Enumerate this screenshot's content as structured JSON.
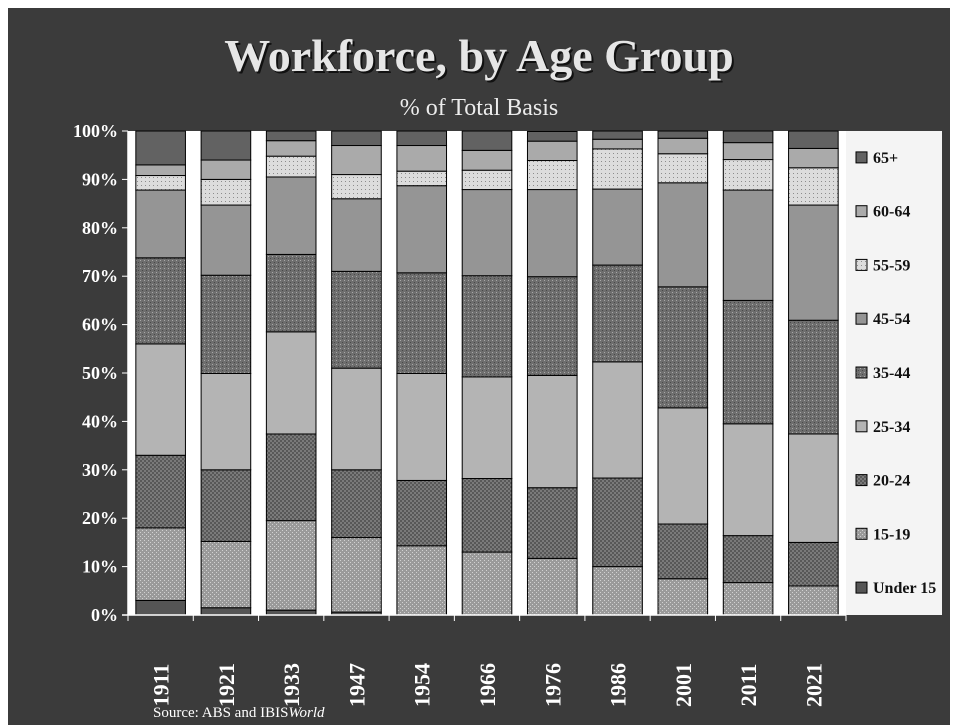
{
  "chart_data": {
    "type": "bar",
    "stacked": true,
    "title": "Workforce, by Age Group",
    "subtitle": "% of Total Basis",
    "source_prefix": "Source: ABS and IBIS",
    "source_italic": "World",
    "categories": [
      "1911",
      "1921",
      "1933",
      "1947",
      "1954",
      "1966",
      "1976",
      "1986",
      "2001",
      "2011",
      "2021"
    ],
    "ylim": [
      0,
      100
    ],
    "yticks": [
      "0%",
      "10%",
      "20%",
      "30%",
      "40%",
      "50%",
      "60%",
      "70%",
      "80%",
      "90%",
      "100%"
    ],
    "legend_placement": "right",
    "series": [
      {
        "name": "Under 15",
        "color": "#555555",
        "pattern": "solid",
        "values": [
          3,
          1.5,
          1,
          0.6,
          0,
          0,
          0,
          0,
          0,
          0,
          0
        ]
      },
      {
        "name": "15-19",
        "color": "#9a9a9a",
        "pattern": "dots",
        "values": [
          15,
          13.7,
          18.5,
          15.4,
          14.3,
          13,
          11.7,
          10,
          7.5,
          6.7,
          6
        ]
      },
      {
        "name": "20-24",
        "color": "#7a7a7a",
        "pattern": "checker",
        "values": [
          15,
          14.8,
          17.9,
          14,
          13.5,
          15.2,
          14.6,
          18.3,
          11.3,
          9.7,
          9
        ]
      },
      {
        "name": "25-34",
        "color": "#b4b4b4",
        "pattern": "solid",
        "values": [
          23,
          19.9,
          21.1,
          21,
          22.1,
          21,
          23.2,
          24,
          24,
          23.1,
          22.4
        ]
      },
      {
        "name": "35-44",
        "color": "#6e6e6e",
        "pattern": "grid",
        "values": [
          17.8,
          20.3,
          16,
          20,
          20.8,
          20.9,
          20.4,
          20,
          25,
          25.5,
          23.5
        ]
      },
      {
        "name": "45-54",
        "color": "#959595",
        "pattern": "solid",
        "values": [
          14,
          14.5,
          16,
          15,
          18,
          17.8,
          18,
          15.7,
          21.5,
          22.8,
          23.8
        ]
      },
      {
        "name": "55-59",
        "color": "#dcdcdc",
        "pattern": "sparse",
        "values": [
          3,
          5.3,
          4.3,
          5,
          3,
          4,
          6,
          8.3,
          6,
          6.3,
          7.7
        ]
      },
      {
        "name": "60-64",
        "color": "#aaaaaa",
        "pattern": "solid",
        "values": [
          2.2,
          4,
          3.2,
          6,
          5.3,
          4.1,
          4,
          2,
          3.2,
          3.5,
          4
        ]
      },
      {
        "name": "65+",
        "color": "#626262",
        "pattern": "solid",
        "values": [
          7,
          6,
          2,
          3,
          3,
          4,
          2,
          1.7,
          1.5,
          2.4,
          3.6
        ]
      }
    ],
    "legend_order": [
      "65+",
      "60-64",
      "55-59",
      "45-54",
      "35-44",
      "25-34",
      "20-24",
      "15-19",
      "Under 15"
    ]
  }
}
